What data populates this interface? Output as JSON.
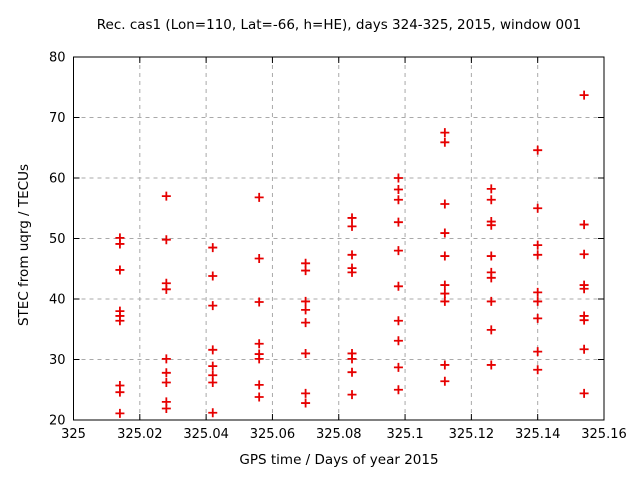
{
  "chart_data": {
    "type": "scatter",
    "title": "Rec. cas1 (Lon=110, Lat=-66, h=HE), days 324-325, 2015, window 001",
    "xlabel": "GPS time / Days of year 2015",
    "ylabel": "STEC from uqrg / TECUs",
    "xlim": [
      325.0,
      325.16
    ],
    "ylim": [
      20,
      80
    ],
    "xticks": [
      325.0,
      325.02,
      325.04,
      325.06,
      325.08,
      325.1,
      325.12,
      325.14,
      325.16
    ],
    "xtick_labels": [
      "325",
      "325.02",
      "325.04",
      "325.06",
      "325.08",
      "325.1",
      "325.12",
      "325.14",
      "325.16"
    ],
    "yticks": [
      20,
      30,
      40,
      50,
      60,
      70,
      80
    ],
    "ytick_labels": [
      "20",
      "30",
      "40",
      "50",
      "60",
      "70",
      "80"
    ],
    "grid": true,
    "legend_position": "none",
    "marker": "plus",
    "marker_color": "#e60000",
    "series": [
      {
        "name": "STEC from uqrg",
        "points": [
          [
            325.014,
            50.1
          ],
          [
            325.014,
            49.1
          ],
          [
            325.014,
            44.8
          ],
          [
            325.014,
            38.0
          ],
          [
            325.014,
            37.2
          ],
          [
            325.014,
            36.4
          ],
          [
            325.014,
            25.7
          ],
          [
            325.014,
            24.6
          ],
          [
            325.014,
            21.1
          ],
          [
            325.028,
            57.0
          ],
          [
            325.028,
            49.8
          ],
          [
            325.028,
            42.6
          ],
          [
            325.028,
            41.6
          ],
          [
            325.028,
            30.1
          ],
          [
            325.028,
            27.8
          ],
          [
            325.028,
            26.2
          ],
          [
            325.028,
            23.0
          ],
          [
            325.028,
            21.9
          ],
          [
            325.042,
            48.5
          ],
          [
            325.042,
            43.8
          ],
          [
            325.042,
            38.9
          ],
          [
            325.042,
            31.6
          ],
          [
            325.042,
            28.9
          ],
          [
            325.042,
            27.4
          ],
          [
            325.042,
            26.2
          ],
          [
            325.042,
            21.2
          ],
          [
            325.056,
            56.8
          ],
          [
            325.056,
            46.7
          ],
          [
            325.056,
            39.5
          ],
          [
            325.056,
            32.6
          ],
          [
            325.056,
            30.9
          ],
          [
            325.056,
            30.1
          ],
          [
            325.056,
            25.8
          ],
          [
            325.056,
            23.8
          ],
          [
            325.07,
            45.9
          ],
          [
            325.07,
            44.7
          ],
          [
            325.07,
            39.6
          ],
          [
            325.07,
            38.2
          ],
          [
            325.07,
            36.1
          ],
          [
            325.07,
            31.0
          ],
          [
            325.07,
            24.4
          ],
          [
            325.07,
            22.8
          ],
          [
            325.084,
            53.4
          ],
          [
            325.084,
            52.0
          ],
          [
            325.084,
            47.3
          ],
          [
            325.084,
            45.1
          ],
          [
            325.084,
            44.4
          ],
          [
            325.084,
            31.0
          ],
          [
            325.084,
            30.1
          ],
          [
            325.084,
            27.9
          ],
          [
            325.084,
            24.2
          ],
          [
            325.098,
            60.0
          ],
          [
            325.098,
            58.1
          ],
          [
            325.098,
            56.4
          ],
          [
            325.098,
            52.7
          ],
          [
            325.098,
            48.0
          ],
          [
            325.098,
            42.1
          ],
          [
            325.098,
            36.4
          ],
          [
            325.098,
            33.1
          ],
          [
            325.098,
            28.7
          ],
          [
            325.098,
            25.0
          ],
          [
            325.112,
            67.5
          ],
          [
            325.112,
            65.9
          ],
          [
            325.112,
            55.7
          ],
          [
            325.112,
            50.9
          ],
          [
            325.112,
            47.1
          ],
          [
            325.112,
            42.3
          ],
          [
            325.112,
            40.9
          ],
          [
            325.112,
            39.6
          ],
          [
            325.112,
            29.1
          ],
          [
            325.112,
            26.4
          ],
          [
            325.126,
            58.2
          ],
          [
            325.126,
            56.4
          ],
          [
            325.126,
            52.8
          ],
          [
            325.126,
            52.2
          ],
          [
            325.126,
            47.1
          ],
          [
            325.126,
            44.4
          ],
          [
            325.126,
            43.5
          ],
          [
            325.126,
            39.6
          ],
          [
            325.126,
            34.9
          ],
          [
            325.126,
            29.1
          ],
          [
            325.14,
            64.6
          ],
          [
            325.14,
            55.0
          ],
          [
            325.14,
            48.9
          ],
          [
            325.14,
            47.3
          ],
          [
            325.14,
            41.1
          ],
          [
            325.14,
            39.6
          ],
          [
            325.14,
            36.8
          ],
          [
            325.14,
            31.3
          ],
          [
            325.14,
            28.3
          ],
          [
            325.154,
            73.7
          ],
          [
            325.154,
            52.3
          ],
          [
            325.154,
            47.4
          ],
          [
            325.154,
            42.3
          ],
          [
            325.154,
            41.7
          ],
          [
            325.154,
            37.2
          ],
          [
            325.154,
            36.5
          ],
          [
            325.154,
            31.7
          ],
          [
            325.154,
            24.4
          ]
        ]
      }
    ]
  },
  "styles": {
    "background": "#ffffff",
    "axis_color": "#000000",
    "grid_color": "#a9a9a9",
    "text_color": "#000000",
    "point_color": "#e60000"
  }
}
